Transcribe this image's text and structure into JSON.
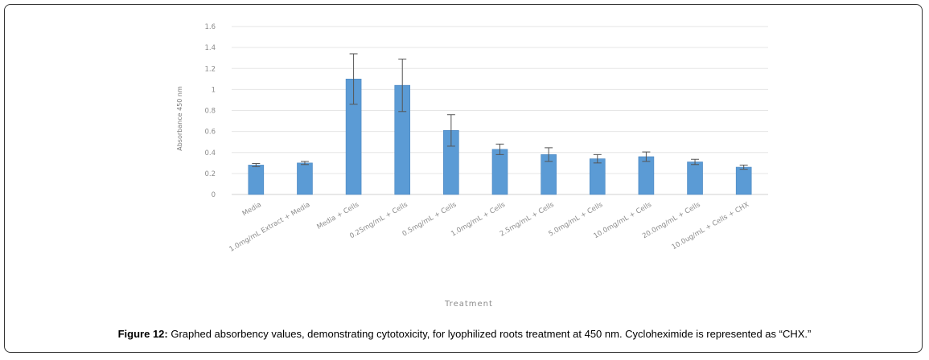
{
  "caption": {
    "label": "Figure 12:",
    "text": " Graphed absorbency values, demonstrating cytotoxicity, for lyophilized roots treatment at 450 nm. Cycloheximide is represented as “CHX.”"
  },
  "chart_data": {
    "type": "bar",
    "xlabel": "Treatment",
    "ylabel": "Absorbance 450 nm",
    "ylim": [
      0,
      1.6
    ],
    "yticks": [
      "0",
      "0.2",
      "0.4",
      "0.6",
      "0.8",
      "1",
      "1.2",
      "1.4",
      "1.6"
    ],
    "grid": true,
    "bar_color": "#5b9bd5",
    "categories": [
      "Media",
      "1.0mg/mL Extract + Media",
      "Media + Cells",
      "0.25mg/mL + Cells",
      "0.5mg/mL + Cells",
      "1.0mg/mL + Cells",
      "2.5mg/mL + Cells",
      "5.0mg/mL + Cells",
      "10.0mg/mL + Cells",
      "20.0mg/mL + Cells",
      "10.0ug/mL + Cells + CHX"
    ],
    "values": [
      0.28,
      0.3,
      1.1,
      1.04,
      0.61,
      0.43,
      0.38,
      0.34,
      0.36,
      0.31,
      0.26
    ],
    "errors": [
      0.015,
      0.015,
      0.24,
      0.25,
      0.15,
      0.05,
      0.065,
      0.04,
      0.045,
      0.025,
      0.02
    ]
  }
}
